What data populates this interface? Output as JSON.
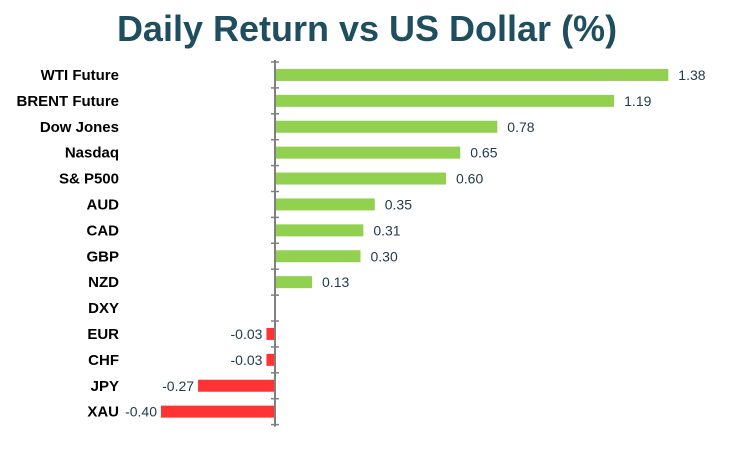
{
  "chart_data": {
    "type": "bar",
    "orientation": "horizontal",
    "title": "Daily Return vs US Dollar (%)",
    "categories": [
      "WTI Future",
      "BRENT Future",
      "Dow Jones",
      "Nasdaq",
      "S& P500",
      "AUD",
      "CAD",
      "GBP",
      "NZD",
      "DXY",
      "EUR",
      "CHF",
      "JPY",
      "XAU"
    ],
    "values": [
      1.38,
      1.19,
      0.78,
      0.65,
      0.6,
      0.35,
      0.31,
      0.3,
      0.13,
      0.0,
      -0.03,
      -0.03,
      -0.27,
      -0.4
    ],
    "labels": [
      "1.38",
      "1.19",
      "0.78",
      "0.65",
      "0.60",
      "0.35",
      "0.31",
      "0.30",
      "0.13",
      "",
      "-0.03",
      "-0.03",
      "-0.27",
      "-0.40"
    ],
    "xlim": [
      -0.4,
      1.38
    ],
    "grid": false,
    "colors": {
      "positive": "#92d050",
      "negative": "#ff3333",
      "axis": "#808080"
    }
  }
}
